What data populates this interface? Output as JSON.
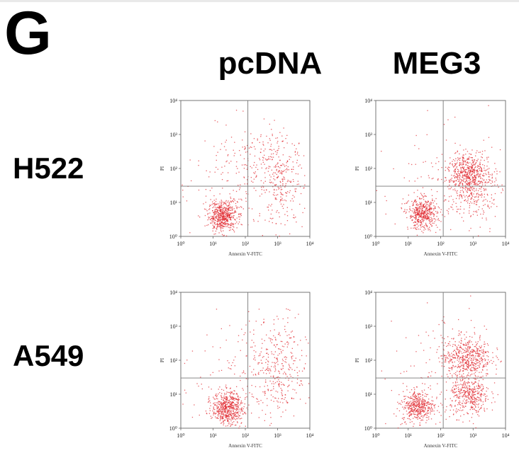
{
  "panel_letter": "G",
  "columns": [
    "pcDNA",
    "MEG3"
  ],
  "rows": [
    "H522",
    "A549"
  ],
  "chart_data": [
    {
      "type": "scatter",
      "cell_line": "H522",
      "condition": "pcDNA",
      "xlabel": "Annexin V-FITC",
      "ylabel": "PI",
      "xscale": "log",
      "yscale": "log",
      "xlim": [
        1,
        10000
      ],
      "ylim": [
        1,
        10000
      ],
      "xticks": [
        "10⁰",
        "10¹",
        "10²",
        "10³",
        "10⁴"
      ],
      "yticks": [
        "10⁰",
        "10¹",
        "10²",
        "10³",
        "10⁴"
      ],
      "quadrant_gate": {
        "x": 120,
        "y": 30
      },
      "point_color": "#e0282f",
      "clusters": [
        {
          "n": 560,
          "cx": 1.3,
          "cy": 0.6,
          "sx": 0.22,
          "sy": 0.22
        },
        {
          "n": 260,
          "cx": 3.1,
          "cy": 1.6,
          "sx": 0.35,
          "sy": 0.65
        },
        {
          "n": 120,
          "cx": 2.4,
          "cy": 2.3,
          "sx": 0.6,
          "sy": 0.5
        },
        {
          "n": 120,
          "cx": 1.6,
          "cy": 1.5,
          "sx": 1.0,
          "sy": 0.8
        }
      ]
    },
    {
      "type": "scatter",
      "cell_line": "H522",
      "condition": "MEG3",
      "xlabel": "Annexin V-FITC",
      "ylabel": "PI",
      "xscale": "log",
      "yscale": "log",
      "xlim": [
        1,
        10000
      ],
      "ylim": [
        1,
        10000
      ],
      "xticks": [
        "10⁰",
        "10¹",
        "10²",
        "10³",
        "10⁴"
      ],
      "yticks": [
        "10⁰",
        "10¹",
        "10²",
        "10³",
        "10⁴"
      ],
      "quadrant_gate": {
        "x": 120,
        "y": 30
      },
      "point_color": "#e0282f",
      "clusters": [
        {
          "n": 460,
          "cx": 1.45,
          "cy": 0.65,
          "sx": 0.22,
          "sy": 0.22
        },
        {
          "n": 420,
          "cx": 2.85,
          "cy": 1.9,
          "sx": 0.3,
          "sy": 0.25
        },
        {
          "n": 300,
          "cx": 3.0,
          "cy": 1.4,
          "sx": 0.35,
          "sy": 0.45
        },
        {
          "n": 160,
          "cx": 2.0,
          "cy": 1.4,
          "sx": 1.0,
          "sy": 0.9
        }
      ]
    },
    {
      "type": "scatter",
      "cell_line": "A549",
      "condition": "pcDNA",
      "xlabel": "Annexin V-FITC",
      "ylabel": "PI",
      "xscale": "log",
      "yscale": "log",
      "xlim": [
        1,
        10000
      ],
      "ylim": [
        1,
        10000
      ],
      "xticks": [
        "10⁰",
        "10¹",
        "10²",
        "10³",
        "10⁴"
      ],
      "yticks": [
        "10⁰",
        "10¹",
        "10²",
        "10³",
        "10⁴"
      ],
      "quadrant_gate": {
        "x": 120,
        "y": 30
      },
      "point_color": "#e0282f",
      "clusters": [
        {
          "n": 560,
          "cx": 1.45,
          "cy": 0.6,
          "sx": 0.24,
          "sy": 0.24
        },
        {
          "n": 300,
          "cx": 3.0,
          "cy": 1.7,
          "sx": 0.45,
          "sy": 0.75
        },
        {
          "n": 160,
          "cx": 2.0,
          "cy": 1.6,
          "sx": 1.0,
          "sy": 0.9
        }
      ]
    },
    {
      "type": "scatter",
      "cell_line": "A549",
      "condition": "MEG3",
      "xlabel": "Annexin V-FITC",
      "ylabel": "PI",
      "xscale": "log",
      "yscale": "log",
      "xlim": [
        1,
        10000
      ],
      "ylim": [
        1,
        10000
      ],
      "xticks": [
        "10⁰",
        "10¹",
        "10²",
        "10³",
        "10⁴"
      ],
      "yticks": [
        "10⁰",
        "10¹",
        "10²",
        "10³",
        "10⁴"
      ],
      "quadrant_gate": {
        "x": 120,
        "y": 30
      },
      "point_color": "#e0282f",
      "clusters": [
        {
          "n": 420,
          "cx": 1.3,
          "cy": 0.65,
          "sx": 0.24,
          "sy": 0.22
        },
        {
          "n": 520,
          "cx": 2.8,
          "cy": 2.1,
          "sx": 0.38,
          "sy": 0.3
        },
        {
          "n": 380,
          "cx": 2.9,
          "cy": 0.95,
          "sx": 0.3,
          "sy": 0.3
        },
        {
          "n": 180,
          "cx": 2.1,
          "cy": 1.4,
          "sx": 1.0,
          "sy": 0.9
        }
      ]
    }
  ]
}
